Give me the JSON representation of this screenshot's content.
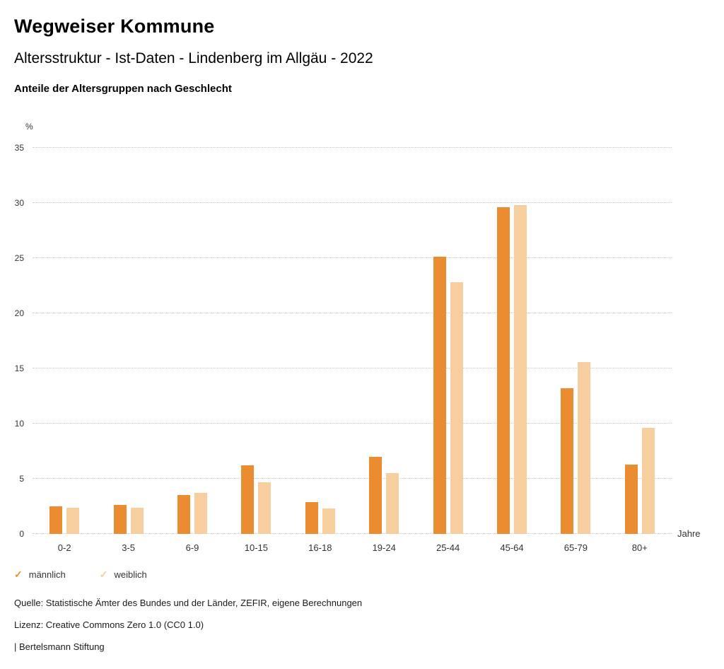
{
  "header": {
    "title": "Wegweiser Kommune",
    "subtitle": "Altersstruktur - Ist-Daten - Lindenberg im Allgäu - 2022",
    "section_title": "Anteile der Altersgruppen nach Geschlecht"
  },
  "chart_data": {
    "type": "bar",
    "title": "Anteile der Altersgruppen nach Geschlecht",
    "unit_label": "%",
    "xlabel": "Jahre",
    "ylim": [
      0,
      35
    ],
    "yticks": [
      0,
      5,
      10,
      15,
      20,
      25,
      30,
      35
    ],
    "grid": true,
    "legend_position": "bottom",
    "categories": [
      "0-2",
      "3-5",
      "6-9",
      "10-15",
      "16-18",
      "19-24",
      "25-44",
      "45-64",
      "65-79",
      "80+"
    ],
    "series": [
      {
        "name": "männlich",
        "color": "#EC8C30",
        "values": [
          2.5,
          2.6,
          3.5,
          6.2,
          2.9,
          7.0,
          25.1,
          29.6,
          13.2,
          6.3
        ]
      },
      {
        "name": "weiblich",
        "color": "#F7CF9F",
        "values": [
          2.4,
          2.4,
          3.7,
          4.7,
          2.3,
          5.5,
          22.8,
          29.8,
          15.6,
          9.6
        ]
      }
    ]
  },
  "legend": {
    "marker": "✓"
  },
  "footer": {
    "source": "Quelle: Statistische Ämter des Bundes und der Länder, ZEFIR, eigene Berechnungen",
    "license": "Lizenz: Creative Commons Zero 1.0 (CC0 1.0)",
    "attribution": "| Bertelsmann Stiftung"
  }
}
